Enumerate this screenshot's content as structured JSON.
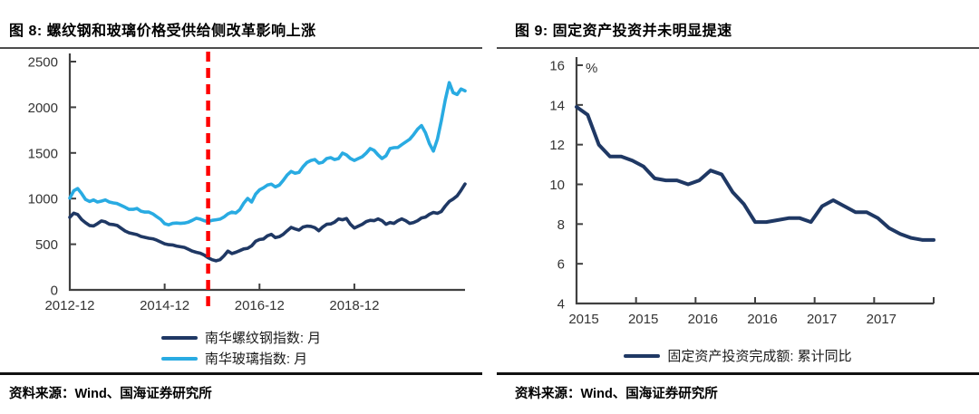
{
  "panels": [
    {
      "title": "图 8: 螺纹钢和玻璃价格受供给侧改革影响上涨",
      "source": "资料来源：Wind、国海证券研究所",
      "legend": [
        {
          "label": "南华螺纹钢指数: 月",
          "color": "#1f3864"
        },
        {
          "label": "南华玻璃指数: 月",
          "color": "#29abe2"
        }
      ]
    },
    {
      "title": "图 9: 固定资产投资并未明显提速",
      "source": "资料来源：Wind、国海证券研究所",
      "legend": [
        {
          "label": "固定资产投资完成额: 累计同比",
          "color": "#1f3864"
        }
      ]
    }
  ],
  "colors": {
    "rebar_line": "#1f3864",
    "glass_line": "#29abe2",
    "fai_line": "#1f3864",
    "marker_red": "#ff0000",
    "axis": "#404040",
    "tick_text": "#333333"
  },
  "chart_data": [
    {
      "type": "line",
      "title": "螺纹钢和玻璃价格受供给侧改革影响上涨",
      "x_start": "2012-12",
      "x_freq": "monthly",
      "x_tick_labels": [
        "2012-12",
        "2014-12",
        "2016-12",
        "2018-12"
      ],
      "x_tick_indices": [
        0,
        24,
        48,
        72
      ],
      "ylim": [
        0,
        2500
      ],
      "y_ticks": [
        0,
        500,
        1000,
        1500,
        2000,
        2500
      ],
      "grid": false,
      "legend_position": "bottom",
      "marker_line": {
        "date": "2015-11",
        "index": 35,
        "color": "#ff0000",
        "style": "dashed"
      },
      "series": [
        {
          "name": "南华螺纹钢指数: 月",
          "color": "#1f3864",
          "values": [
            795,
            840,
            825,
            770,
            735,
            705,
            700,
            725,
            755,
            745,
            720,
            715,
            705,
            675,
            645,
            625,
            615,
            605,
            585,
            575,
            565,
            560,
            545,
            525,
            505,
            495,
            492,
            480,
            472,
            465,
            445,
            425,
            412,
            402,
            382,
            352,
            330,
            318,
            330,
            372,
            425,
            398,
            412,
            430,
            448,
            455,
            482,
            532,
            552,
            558,
            592,
            608,
            572,
            582,
            608,
            648,
            685,
            668,
            655,
            688,
            698,
            695,
            682,
            648,
            688,
            718,
            722,
            742,
            778,
            768,
            782,
            718,
            678,
            698,
            718,
            748,
            762,
            758,
            778,
            758,
            718,
            738,
            728,
            758,
            778,
            758,
            728,
            738,
            758,
            788,
            798,
            828,
            848,
            838,
            858,
            918,
            968,
            995,
            1030,
            1090,
            1160
          ]
        },
        {
          "name": "南华玻璃指数: 月",
          "color": "#29abe2",
          "values": [
            1005,
            1085,
            1110,
            1055,
            990,
            968,
            985,
            962,
            972,
            985,
            962,
            952,
            945,
            925,
            905,
            882,
            882,
            892,
            862,
            852,
            852,
            832,
            802,
            772,
            725,
            712,
            728,
            732,
            728,
            732,
            742,
            762,
            785,
            775,
            758,
            748,
            762,
            768,
            775,
            798,
            832,
            852,
            842,
            878,
            948,
            1002,
            962,
            1048,
            1095,
            1118,
            1148,
            1158,
            1128,
            1148,
            1198,
            1258,
            1298,
            1278,
            1288,
            1348,
            1395,
            1418,
            1428,
            1388,
            1398,
            1438,
            1448,
            1428,
            1438,
            1498,
            1478,
            1438,
            1418,
            1438,
            1458,
            1498,
            1548,
            1528,
            1478,
            1438,
            1468,
            1548,
            1558,
            1560,
            1590,
            1620,
            1650,
            1700,
            1760,
            1800,
            1720,
            1600,
            1520,
            1650,
            1850,
            2080,
            2270,
            2160,
            2140,
            2200,
            2180
          ]
        }
      ]
    },
    {
      "type": "line",
      "title": "固定资产投资并未明显提速",
      "unit": "%",
      "x_labels": [
        "2015-02",
        "2015-03",
        "2015-04",
        "2015-05",
        "2015-06",
        "2015-07",
        "2015-08",
        "2015-09",
        "2015-10",
        "2015-11",
        "2015-12",
        "2016-02",
        "2016-03",
        "2016-04",
        "2016-05",
        "2016-06",
        "2016-07",
        "2016-08",
        "2016-09",
        "2016-10",
        "2016-11",
        "2016-12",
        "2017-02",
        "2017-03",
        "2017-04",
        "2017-05",
        "2017-06",
        "2017-07",
        "2017-08",
        "2017-09",
        "2017-10",
        "2017-11",
        "2017-12"
      ],
      "x_tick_labels": [
        "2015",
        "2015",
        "2016",
        "2016",
        "2017",
        "2017"
      ],
      "ylim": [
        4,
        16
      ],
      "y_ticks": [
        4,
        6,
        8,
        10,
        12,
        14,
        16
      ],
      "grid": false,
      "legend_position": "bottom",
      "series": [
        {
          "name": "固定资产投资完成额: 累计同比",
          "color": "#1f3864",
          "values": [
            13.9,
            13.5,
            12.0,
            11.4,
            11.4,
            11.2,
            10.9,
            10.3,
            10.2,
            10.2,
            10.0,
            10.2,
            10.7,
            10.5,
            9.6,
            9.0,
            8.1,
            8.1,
            8.2,
            8.3,
            8.3,
            8.1,
            8.9,
            9.2,
            8.9,
            8.6,
            8.6,
            8.3,
            7.8,
            7.5,
            7.3,
            7.2,
            7.2
          ]
        }
      ]
    }
  ]
}
